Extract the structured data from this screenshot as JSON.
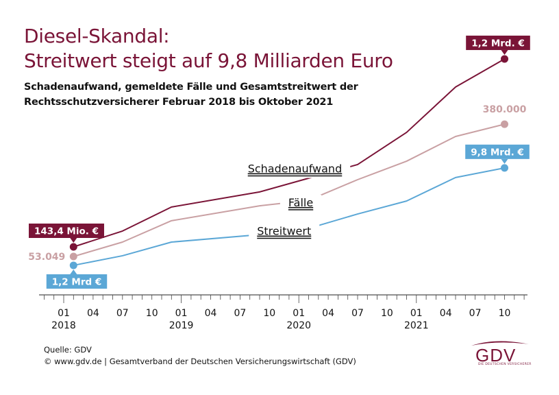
{
  "header": {
    "title_line1": "Diesel-Skandal:",
    "title_line2": "Streitwert steigt auf 9,8 Milliarden Euro",
    "subtitle_line1": "Schadenaufwand, gemeldete Fälle und Gesamtstreitwert der",
    "subtitle_line2": "Rechtsschutzversicherer Februar 2018 bis Oktober 2021"
  },
  "footer": {
    "source": "Quelle: GDV",
    "copyright": "© www.gdv.de | Gesamtverband der Deutschen Versicherungswirtschaft (GDV)"
  },
  "logo": {
    "text": "GDV",
    "tagline": "DIE DEUTSCHEN VERSICHERER"
  },
  "chart_data": {
    "type": "line",
    "title": "Diesel-Skandal: Streitwert steigt auf 9,8 Milliarden Euro",
    "subtitle": "Schadenaufwand, gemeldete Fälle und Gesamtstreitwert der Rechtsschutzversicherer Februar 2018 bis Oktober 2021",
    "xlabel": "",
    "ylabel": "",
    "y_axis_visible": false,
    "y_units": "relative index (unlabeled axis, 0–100)",
    "ylim": [
      0,
      100
    ],
    "x_units": "months since 01/2018",
    "xlim": [
      -2.5,
      48
    ],
    "grid": false,
    "legend": "inline labels",
    "x_ticks": [
      {
        "month": 0,
        "label": "01",
        "year": "2018"
      },
      {
        "month": 3,
        "label": "04"
      },
      {
        "month": 6,
        "label": "07"
      },
      {
        "month": 9,
        "label": "10"
      },
      {
        "month": 12,
        "label": "01",
        "year": "2019"
      },
      {
        "month": 15,
        "label": "04"
      },
      {
        "month": 18,
        "label": "07"
      },
      {
        "month": 21,
        "label": "10"
      },
      {
        "month": 24,
        "label": "01",
        "year": "2020"
      },
      {
        "month": 27,
        "label": "04"
      },
      {
        "month": 30,
        "label": "07"
      },
      {
        "month": 33,
        "label": "10"
      },
      {
        "month": 36,
        "label": "01",
        "year": "2021"
      },
      {
        "month": 39,
        "label": "04"
      },
      {
        "month": 42,
        "label": "07"
      },
      {
        "month": 45,
        "label": "10"
      }
    ],
    "minor_tick_range": [
      -2,
      47
    ],
    "x": [
      1,
      6,
      11,
      20,
      25,
      30,
      35,
      40,
      45
    ],
    "series": [
      {
        "name": "Schadenaufwand",
        "color": "#7a1437",
        "values": [
          20,
          26.6,
          36.6,
          42.9,
          48.6,
          54.3,
          67.7,
          86.6,
          98.3
        ],
        "start_label": "143,4 Mio. €",
        "end_label": "1,2 Mrd. €",
        "inline_label": "Schadenaufwand",
        "inline_label_at": {
          "month": 23.6,
          "value": 52.7
        }
      },
      {
        "name": "Fälle",
        "color": "#c9a0a3",
        "values": [
          16,
          22,
          30.9,
          37.1,
          39.4,
          48,
          55.7,
          66,
          71.1
        ],
        "start_label": "53.049",
        "end_label": "380.000",
        "inline_label": "Fälle",
        "inline_label_at": {
          "month": 24.2,
          "value": 38.6
        }
      },
      {
        "name": "Streitwert",
        "color": "#5ba7d6",
        "values": [
          12.3,
          16.3,
          22,
          25.1,
          27.7,
          33.7,
          39.1,
          48.9,
          52.9
        ],
        "start_label": "1,2 Mrd €",
        "end_label": "9,8 Mrd. €",
        "inline_label": "Streitwert",
        "inline_label_at": {
          "month": 22.5,
          "value": 26.7
        }
      }
    ]
  }
}
